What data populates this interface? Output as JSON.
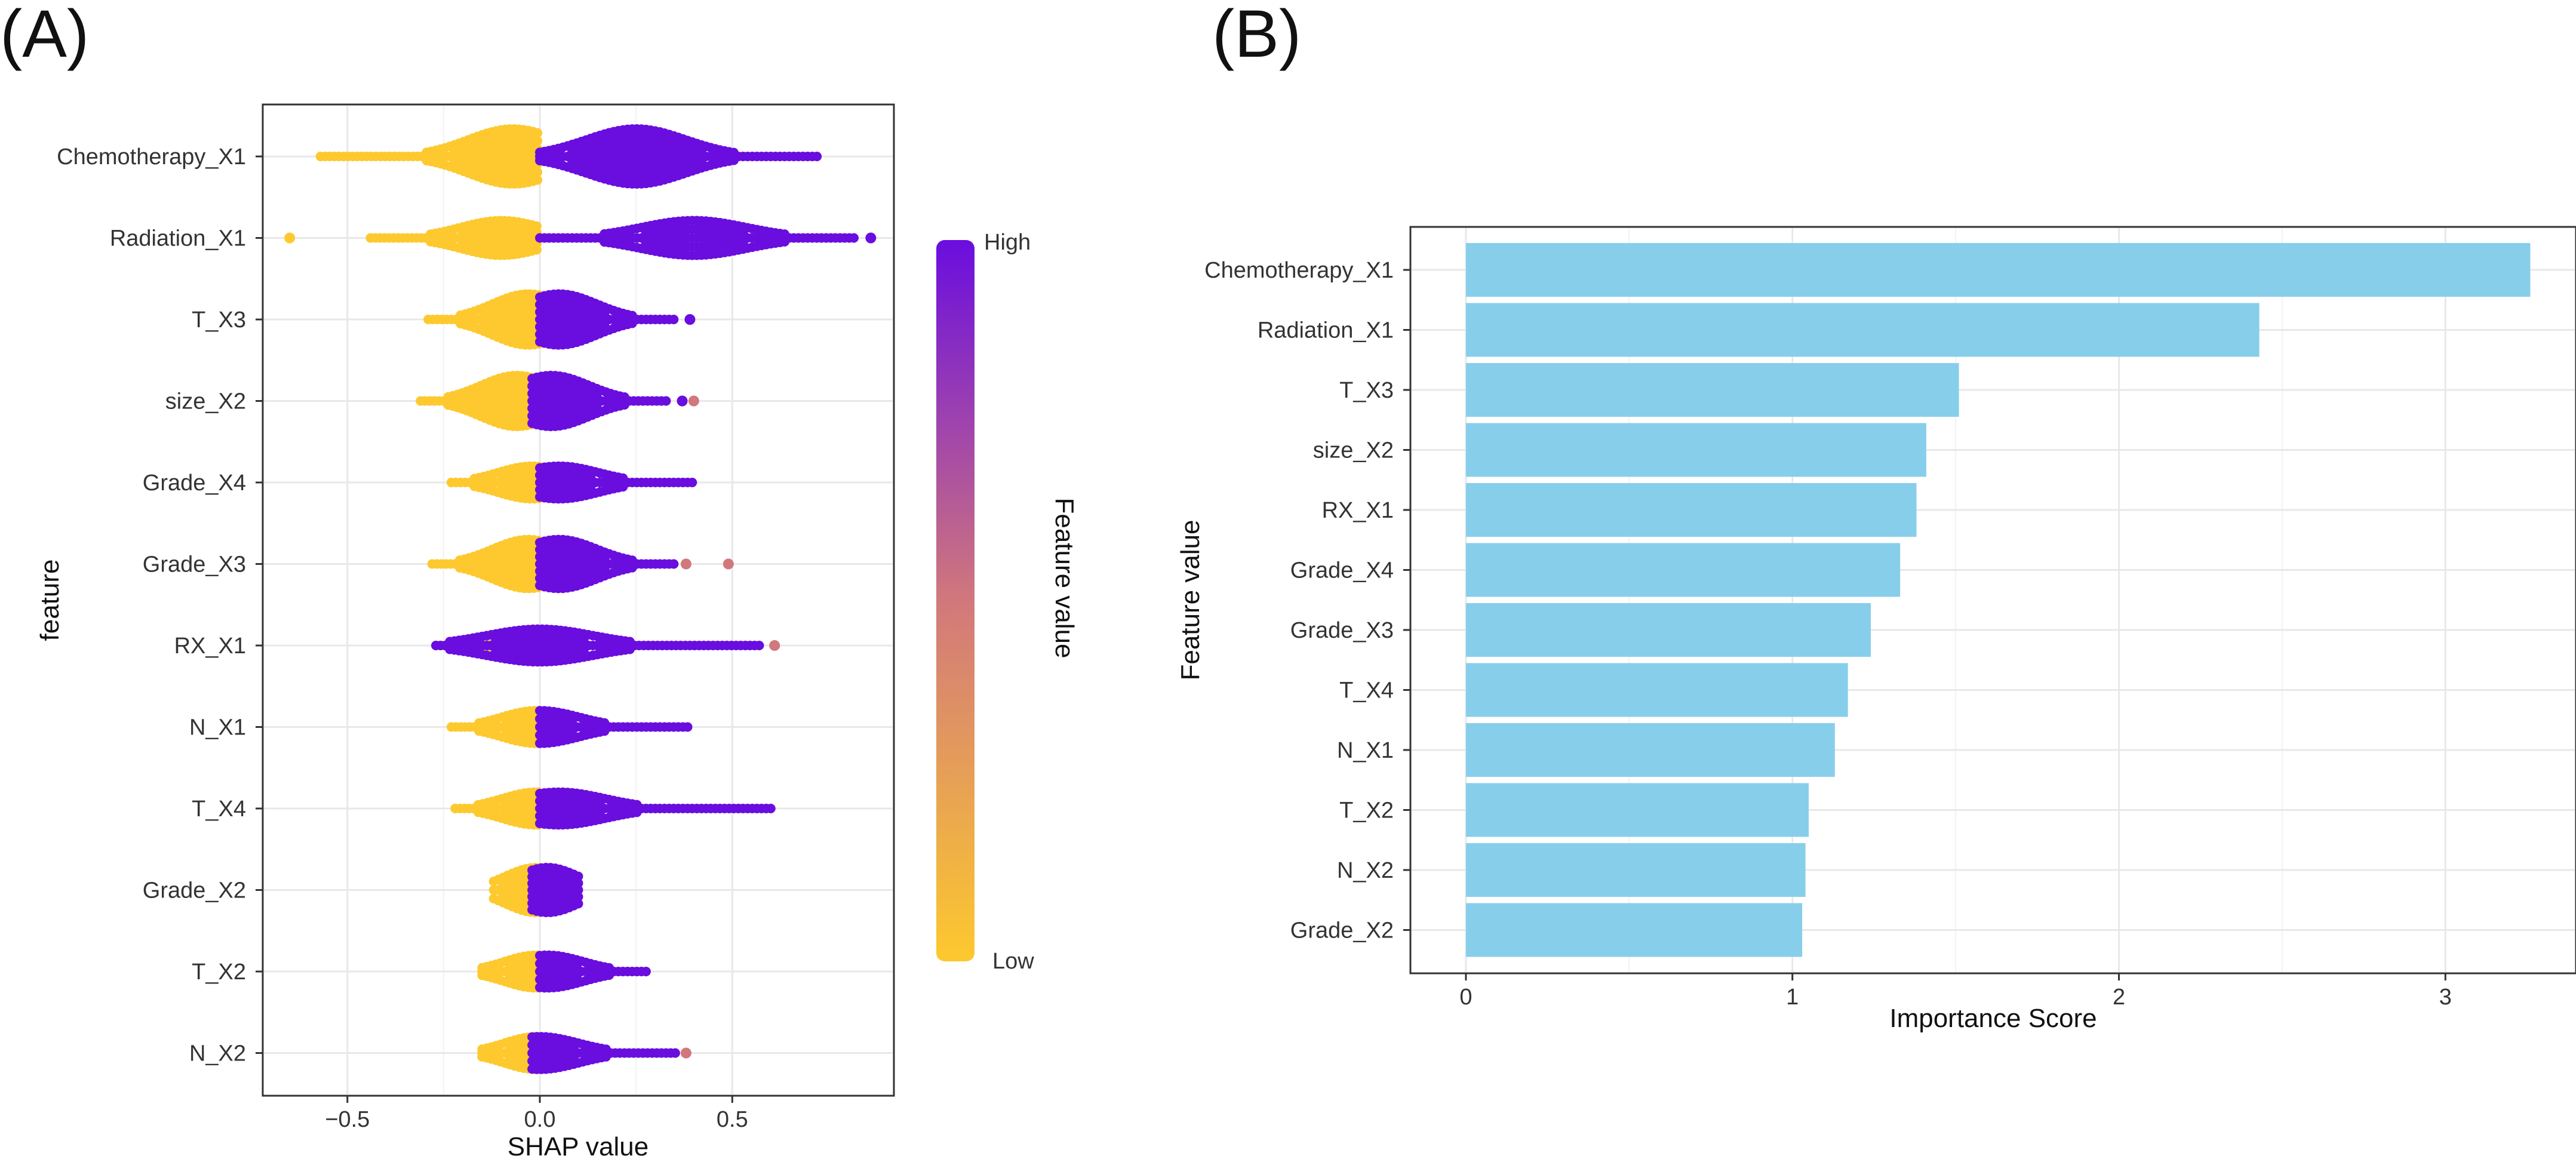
{
  "colors": {
    "high": "#6a0ddf",
    "low": "#fdc92e",
    "mid": "#d1787c",
    "bar": "#87ceeb",
    "grid": "#e8e8e8"
  },
  "chart_data": [
    {
      "panel": "(A)",
      "type": "scatter",
      "title": "",
      "xlabel": "SHAP value",
      "ylabel": "feature",
      "xlim": [
        -0.72,
        0.92
      ],
      "xticks": [
        -0.5,
        0.0,
        0.5
      ],
      "xtick_labels": [
        "−0.5",
        "0.0",
        "0.5"
      ],
      "legend": {
        "title": "Feature value",
        "high_label": "High",
        "low_label": "Low",
        "position": "right"
      },
      "features": [
        {
          "name": "Chemotherapy_X1",
          "low_range": [
            -0.57,
            0.0
          ],
          "low_peak": -0.07,
          "high_range": [
            0.0,
            0.73
          ],
          "high_peak": 0.25,
          "width": 1.0,
          "outliers": []
        },
        {
          "name": "Radiation_X1",
          "low_range": [
            -0.44,
            0.0
          ],
          "low_peak": -0.1,
          "high_range": [
            0.0,
            0.82
          ],
          "high_peak": 0.4,
          "width": 0.5,
          "outliers": [
            {
              "x": -0.65,
              "c": "low"
            },
            {
              "x": 0.86,
              "c": "high"
            }
          ]
        },
        {
          "name": "T_X3",
          "low_range": [
            -0.29,
            0.0
          ],
          "low_peak": -0.03,
          "high_range": [
            0.0,
            0.35
          ],
          "high_peak": 0.05,
          "width": 0.9,
          "outliers": [
            {
              "x": 0.39,
              "c": "high"
            }
          ]
        },
        {
          "name": "size_X2",
          "low_range": [
            -0.31,
            -0.02
          ],
          "low_peak": -0.06,
          "high_range": [
            -0.02,
            0.33
          ],
          "high_peak": 0.03,
          "width": 0.9,
          "outliers": [
            {
              "x": 0.37,
              "c": "high"
            },
            {
              "x": 0.4,
              "c": "mid"
            }
          ]
        },
        {
          "name": "Grade_X4",
          "low_range": [
            -0.23,
            0.0
          ],
          "low_peak": -0.02,
          "high_range": [
            0.0,
            0.4
          ],
          "high_peak": 0.05,
          "width": 0.45,
          "outliers": []
        },
        {
          "name": "Grade_X3",
          "low_range": [
            -0.28,
            0.0
          ],
          "low_peak": -0.03,
          "high_range": [
            0.0,
            0.35
          ],
          "high_peak": 0.05,
          "width": 0.85,
          "outliers": [
            {
              "x": 0.38,
              "c": "mid"
            },
            {
              "x": 0.49,
              "c": "mid"
            }
          ]
        },
        {
          "name": "RX_X1",
          "low_range": [
            -0.27,
            0.0
          ],
          "low_peak": -0.01,
          "high_range": [
            -0.27,
            0.58
          ],
          "high_peak": 0.0,
          "width": 0.45,
          "outliers": [
            {
              "x": 0.61,
              "c": "mid"
            }
          ]
        },
        {
          "name": "N_X1",
          "low_range": [
            -0.23,
            0.0
          ],
          "low_peak": -0.01,
          "high_range": [
            0.0,
            0.39
          ],
          "high_peak": 0.0,
          "width": 0.45,
          "outliers": []
        },
        {
          "name": "T_X4",
          "low_range": [
            -0.22,
            0.0
          ],
          "low_peak": -0.01,
          "high_range": [
            0.0,
            0.61
          ],
          "high_peak": 0.05,
          "width": 0.45,
          "outliers": []
        },
        {
          "name": "Grade_X2",
          "low_range": [
            -0.12,
            0.0
          ],
          "low_peak": -0.01,
          "high_range": [
            -0.02,
            0.11
          ],
          "high_peak": 0.02,
          "width": 0.75,
          "outliers": []
        },
        {
          "name": "T_X2",
          "low_range": [
            -0.15,
            0.0
          ],
          "low_peak": -0.01,
          "high_range": [
            0.0,
            0.28
          ],
          "high_peak": 0.02,
          "width": 0.45,
          "outliers": []
        },
        {
          "name": "N_X2",
          "low_range": [
            -0.15,
            0.0
          ],
          "low_peak": -0.01,
          "high_range": [
            -0.02,
            0.36
          ],
          "high_peak": 0.0,
          "width": 0.45,
          "outliers": [
            {
              "x": 0.38,
              "c": "mid"
            }
          ]
        }
      ]
    },
    {
      "panel": "(B)",
      "type": "bar",
      "orientation": "horizontal",
      "title": "",
      "xlabel": "Importance Score",
      "ylabel": "Feature value",
      "xlim": [
        -0.17,
        3.4
      ],
      "xticks": [
        0,
        1,
        2,
        3
      ],
      "xtick_labels": [
        "0",
        "1",
        "2",
        "3"
      ],
      "categories": [
        "Chemotherapy_X1",
        "Radiation_X1",
        "T_X3",
        "size_X2",
        "RX_X1",
        "Grade_X4",
        "Grade_X3",
        "T_X4",
        "N_X1",
        "T_X2",
        "N_X2",
        "Grade_X2"
      ],
      "values": [
        3.26,
        2.43,
        1.51,
        1.41,
        1.38,
        1.33,
        1.24,
        1.17,
        1.13,
        1.05,
        1.04,
        1.03
      ]
    }
  ]
}
